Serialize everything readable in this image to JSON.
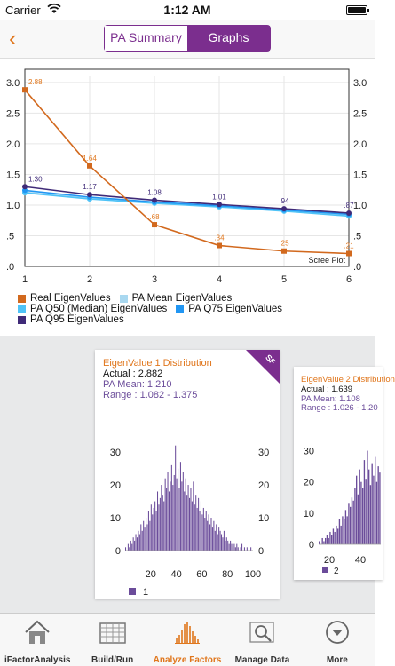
{
  "status": {
    "carrier": "Carrier",
    "time": "1:12 AM"
  },
  "nav": {
    "back_glyph": "‹",
    "segments": [
      "PA Summary",
      "Graphs"
    ],
    "active_segment": "Graphs"
  },
  "colors": {
    "accent": "#7b2e8e",
    "orange": "#e0761c",
    "real": "#d2691e",
    "pa_mean": "#a9d8f0",
    "pa_q50": "#4fc3f7",
    "pa_q75": "#2196f3",
    "pa_q95": "#3f2a78",
    "hist": "#6b4c9a"
  },
  "chart_data": [
    {
      "type": "line",
      "title": "",
      "annotation": "Scree Plot",
      "x": [
        1,
        2,
        3,
        4,
        5,
        6
      ],
      "xlim": [
        1,
        6
      ],
      "ylim": [
        0,
        3.1
      ],
      "y_ticks": [
        "3.0",
        "2.5",
        "2.0",
        "1.5",
        "1.0",
        ".5",
        ".0"
      ],
      "y_tick_values": [
        3.0,
        2.5,
        2.0,
        1.5,
        1.0,
        0.5,
        0.0
      ],
      "x_ticks": [
        "1",
        "2",
        "3",
        "4",
        "5",
        "6"
      ],
      "grid": true,
      "series": [
        {
          "name": "Real EigenValues",
          "values": [
            2.88,
            1.64,
            0.68,
            0.34,
            0.25,
            0.21
          ],
          "labels": [
            "2.88",
            "1.64",
            ".68",
            ".34",
            ".25",
            ".21"
          ],
          "color": "#d2691e"
        },
        {
          "name": "PA Mean EigenValues",
          "values": [
            1.21,
            1.11,
            1.04,
            0.98,
            0.91,
            0.83
          ],
          "color": "#a9d8f0"
        },
        {
          "name": "PA Q50 (Median) EigenValues",
          "values": [
            1.2,
            1.1,
            1.03,
            0.97,
            0.9,
            0.82
          ],
          "color": "#4fc3f7"
        },
        {
          "name": "PA Q75 EigenValues",
          "values": [
            1.24,
            1.13,
            1.05,
            0.99,
            0.92,
            0.85
          ],
          "color": "#2196f3"
        },
        {
          "name": "PA Q95 EigenValues",
          "values": [
            1.3,
            1.17,
            1.08,
            1.01,
            0.94,
            0.87
          ],
          "labels": [
            "1.30",
            "1.17",
            "1.08",
            "1.01",
            ".94",
            ".87"
          ],
          "color": "#3f2a78"
        }
      ]
    },
    {
      "type": "bar",
      "title": "EigenValue 1 Distribution",
      "actual": "Actual : 2.882",
      "pa_mean": "PA Mean: 1.210",
      "range": "Range  : 1.082 - 1.375",
      "badge": "SF",
      "x_ticks": [
        "20",
        "40",
        "60",
        "80",
        "100"
      ],
      "y_ticks": [
        "30",
        "20",
        "10",
        "0"
      ],
      "legend": "1",
      "ylim": [
        0,
        33
      ],
      "xlim": [
        0,
        100
      ],
      "values": [
        1,
        0,
        2,
        1,
        3,
        2,
        4,
        3,
        5,
        4,
        6,
        5,
        8,
        6,
        9,
        7,
        10,
        8,
        12,
        9,
        14,
        11,
        13,
        15,
        12,
        18,
        14,
        16,
        20,
        17,
        15,
        22,
        19,
        24,
        18,
        21,
        26,
        20,
        23,
        32,
        22,
        25,
        19,
        27,
        21,
        24,
        18,
        22,
        17,
        20,
        16,
        19,
        15,
        21,
        14,
        17,
        13,
        16,
        12,
        15,
        11,
        13,
        10,
        12,
        9,
        11,
        8,
        10,
        7,
        9,
        6,
        8,
        5,
        7,
        6,
        5,
        4,
        6,
        3,
        4,
        3,
        2,
        3,
        2,
        1,
        2,
        1,
        2,
        1,
        0,
        1,
        2,
        0,
        1,
        0,
        1,
        0,
        0,
        1,
        0
      ]
    },
    {
      "type": "bar",
      "title": "EigenValue 2 Distribution",
      "actual": "Actual : 1.639",
      "pa_mean": "PA Mean: 1.108",
      "range": "Range  : 1.026 - 1.20",
      "x_ticks": [
        "20",
        "40"
      ],
      "y_ticks": [
        "30",
        "20",
        "10",
        "0"
      ],
      "legend": "2",
      "ylim": [
        0,
        33
      ],
      "values": [
        1,
        0,
        2,
        1,
        2,
        3,
        2,
        4,
        3,
        5,
        4,
        6,
        5,
        8,
        6,
        9,
        8,
        11,
        9,
        13,
        12,
        15,
        14,
        18,
        22,
        16,
        24,
        20,
        18,
        27,
        21,
        30,
        24,
        19,
        26,
        22,
        28,
        20,
        25,
        23
      ]
    }
  ],
  "tabs": [
    {
      "label": "iFactorAnalysis",
      "icon": "home-icon"
    },
    {
      "label": "Build/Run",
      "icon": "grid-table-icon"
    },
    {
      "label": "Analyze Factors",
      "icon": "histogram-icon"
    },
    {
      "label": "Manage Data",
      "icon": "search-data-icon"
    },
    {
      "label": "More",
      "icon": "more-chevron-icon"
    }
  ],
  "active_tab": "Analyze Factors"
}
